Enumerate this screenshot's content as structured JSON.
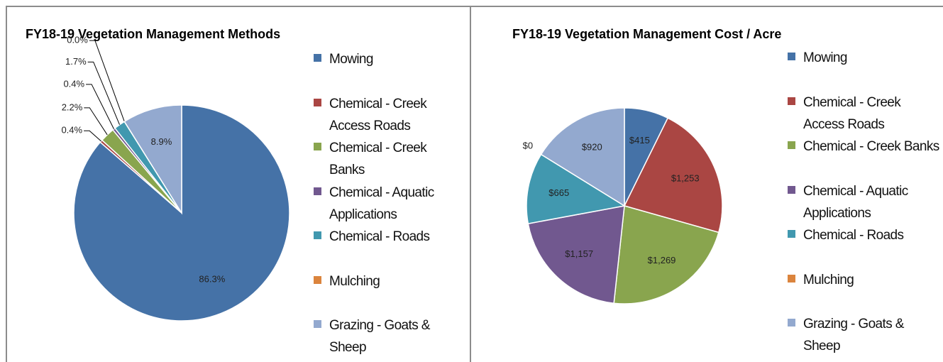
{
  "chart_data": [
    {
      "type": "pie",
      "title": "FY18-19 Vegetation Management Methods",
      "categories": [
        "Mowing",
        "Chemical - Creek Access Roads",
        "Chemical - Creek Banks",
        "Chemical - Aquatic Applications",
        "Chemical - Roads",
        "Mulching",
        "Grazing - Goats & Sheep"
      ],
      "values": [
        86.3,
        0.4,
        2.2,
        0.4,
        1.7,
        0.0,
        8.9
      ],
      "value_labels": [
        "86.3%",
        "0.4%",
        "2.2%",
        "0.4%",
        "1.7%",
        "0.0%",
        "8.9%"
      ],
      "colors": [
        "#4572a7",
        "#aa4643",
        "#89a54e",
        "#71588f",
        "#4198af",
        "#db843d",
        "#93a9cf"
      ],
      "legend": "right"
    },
    {
      "type": "pie",
      "title": "FY18-19 Vegetation Management Cost / Acre",
      "categories": [
        "Mowing",
        "Chemical - Creek Access Roads",
        "Chemical - Creek Banks",
        "Chemical - Aquatic Applications",
        "Chemical - Roads",
        "Mulching",
        "Grazing - Goats & Sheep"
      ],
      "values": [
        415,
        1253,
        1269,
        1157,
        665,
        0,
        920
      ],
      "value_labels": [
        "$415",
        "$1,253",
        "$1,269",
        "$1,157",
        "$665",
        "$0",
        "$920"
      ],
      "colors": [
        "#4572a7",
        "#aa4643",
        "#89a54e",
        "#71588f",
        "#4198af",
        "#db843d",
        "#93a9cf"
      ],
      "legend": "right"
    }
  ]
}
